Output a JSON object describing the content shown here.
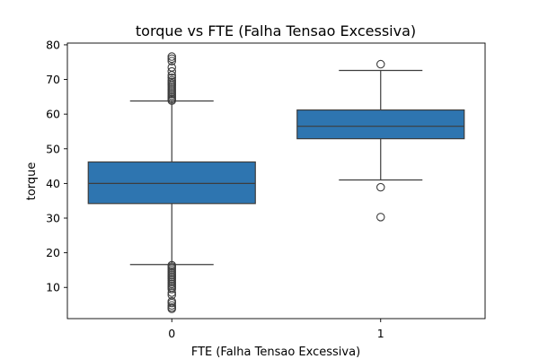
{
  "chart_data": {
    "type": "box",
    "title": "torque vs FTE (Falha Tensao Excessiva)",
    "xlabel": "FTE (Falha Tensao Excessiva)",
    "ylabel": "torque",
    "ylim": [
      1.0,
      80.5
    ],
    "yticks": [
      10,
      20,
      30,
      40,
      50,
      60,
      70,
      80
    ],
    "categories": [
      "0",
      "1"
    ],
    "color": "#2e75b0",
    "boxes": [
      {
        "category": "0",
        "whisker_low": 16.6,
        "q1": 34.2,
        "median": 40.0,
        "q3": 46.2,
        "whisker_high": 63.8,
        "outliers": [
          3.8,
          4.2,
          4.8,
          5.5,
          6.0,
          7.8,
          8.5,
          9.5,
          10.0,
          10.5,
          11.0,
          11.5,
          12.0,
          12.5,
          13.0,
          13.5,
          14.0,
          14.5,
          15.0,
          15.5,
          16.0,
          16.4,
          63.9,
          64.3,
          64.8,
          65.3,
          65.8,
          66.3,
          66.8,
          67.3,
          67.8,
          68.3,
          68.8,
          69.3,
          69.8,
          70.5,
          71.2,
          72.3,
          73.5,
          75.3,
          76.0,
          76.6
        ]
      },
      {
        "category": "1",
        "whisker_low": 41.0,
        "q1": 52.9,
        "median": 56.5,
        "q3": 61.2,
        "whisker_high": 72.6,
        "outliers": [
          30.3,
          38.9,
          74.4
        ]
      }
    ]
  }
}
